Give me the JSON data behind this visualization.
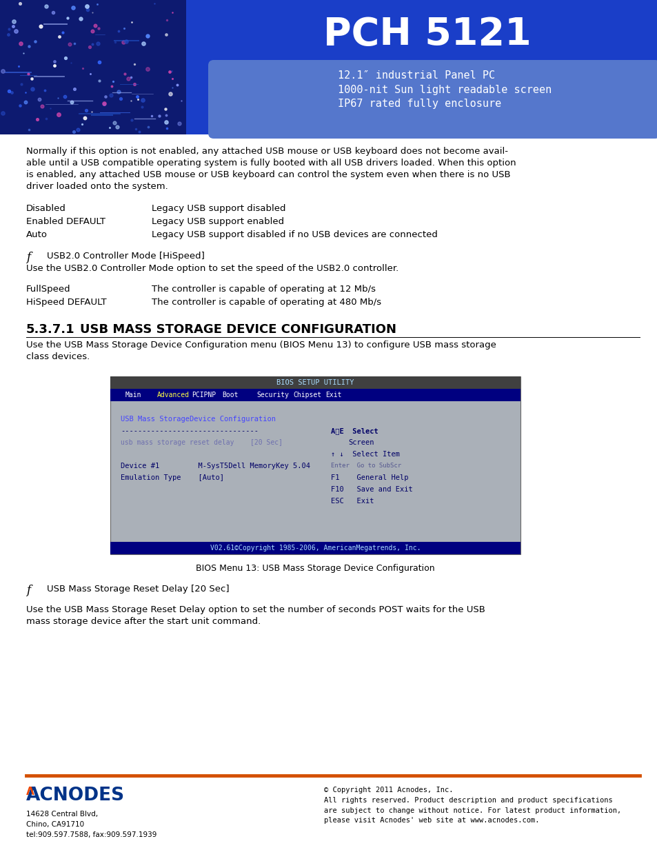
{
  "title": "PCH 5121",
  "subtitle_lines": [
    "12.1″ industrial Panel PC",
    "1000-nit Sun light readable screen",
    "IP67 rated fully enclosure"
  ],
  "header_bg_color": "#1e50d0",
  "body_text_1": "Normally if this option is not enabled, any attached USB mouse or USB keyboard does not become avail-\nable until a USB compatible operating system is fully booted with all USB drivers loaded. When this option\nis enabled, any attached USB mouse or USB keyboard can control the system even when there is no USB\ndriver loaded onto the system.",
  "table1": [
    [
      "Disabled",
      "Legacy USB support disabled"
    ],
    [
      "Enabled DEFAULT",
      "Legacy USB support enabled"
    ],
    [
      "Auto",
      "Legacy USB support disabled if no USB devices are connected"
    ]
  ],
  "italic_label_1": "f",
  "italic_text_1": "USB2.0 Controller Mode [HiSpeed]",
  "body_text_2": "Use the USB2.0 Controller Mode option to set the speed of the USB2.0 controller.",
  "table2": [
    [
      "FullSpeed",
      "The controller is capable of operating at 12 Mb/s"
    ],
    [
      "HiSpeed DEFAULT",
      "The controller is capable of operating at 480 Mb/s"
    ]
  ],
  "section_num": "5.3.7.1",
  "section_title": "USB MASS STORAGE DEVICE CONFIGURATION",
  "section_body": "Use the USB Mass Storage Device Configuration menu (BIOS Menu 13) to configure USB mass storage\nclass devices.",
  "bios_caption": "BIOS Menu 13: USB Mass Storage Device Configuration",
  "italic_label_2": "f",
  "italic_text_2": "USB Mass Storage Reset Delay [20 Sec]",
  "body_text_3": "Use the USB Mass Storage Reset Delay option to set the number of seconds POST waits for the USB\nmass storage device after the start unit command.",
  "footer_line_color": "#d45000",
  "footer_logo_text": "ACNODES",
  "footer_addr": "14628 Central Blvd,\nChino, CA91710\ntel:909.597.7588, fax:909.597.1939",
  "footer_copy": "© Copyright 2011 Acnodes, Inc.\nAll rights reserved. Product description and product specifications\nare subject to change without notice. For latest product information,\nplease visit Acnodes' web site at www.acnodes.com.",
  "bios_bg": "#aab0b8",
  "bios_header_bg": "#000080",
  "bios_nav_highlight": "#ffffff",
  "bios_title_text": "#4444ff",
  "bios_content_text": "#000066",
  "bios_right_text": "#000066"
}
